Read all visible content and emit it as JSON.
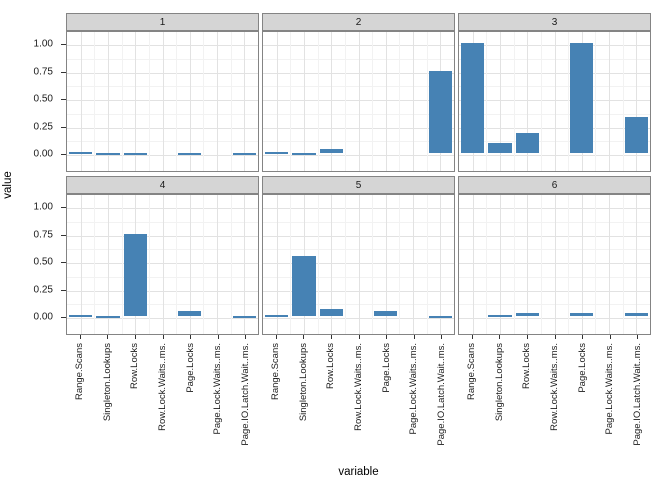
{
  "figure": {
    "xlabel": "variable",
    "ylabel": "value"
  },
  "chart_data": {
    "type": "bar",
    "faceted": true,
    "facet_layout": {
      "rows": 2,
      "cols": 3
    },
    "title": "",
    "xlabel": "variable",
    "ylabel": "value",
    "legend": "none",
    "grid": true,
    "categories": [
      "Range.Scans",
      "Singleton.Lookups",
      "Row.Locks",
      "Row.Lock.Waits..ms.",
      "Page.Locks",
      "Page.Lock.Waits..ms.",
      "Page.IO.Latch.Wait..ms."
    ],
    "series": [
      {
        "name": "1",
        "values": [
          0,
          -0.02,
          -0.02,
          null,
          -0.01,
          null,
          -0.01
        ]
      },
      {
        "name": "2",
        "values": [
          0,
          -0.02,
          0.04,
          null,
          null,
          null,
          0.75
        ]
      },
      {
        "name": "3",
        "values": [
          1.0,
          0.09,
          0.18,
          null,
          1.0,
          null,
          0.33
        ]
      },
      {
        "name": "4",
        "values": [
          0,
          -0.02,
          0.75,
          null,
          0.05,
          null,
          -0.01
        ]
      },
      {
        "name": "5",
        "values": [
          0,
          0.55,
          0.06,
          null,
          0.05,
          null,
          -0.01
        ]
      },
      {
        "name": "6",
        "values": [
          null,
          0,
          0.03,
          null,
          0.03,
          null,
          0.03
        ]
      }
    ],
    "y_ticks": [
      1.0,
      0.75,
      0.5,
      0.25,
      0.0
    ],
    "y_tick_labels": [
      "1.00",
      "0.75",
      "0.50",
      "0.25",
      "0.00"
    ],
    "ylim": [
      -0.16,
      1.12
    ],
    "colors": {
      "bar": "#4682B4",
      "strip_fill": "#D5D5D5",
      "panel_border": "#848484",
      "grid_major": "#E2E2E2",
      "grid_minor": "#F2F2F2",
      "tick": "#333333",
      "text": "#1a1a1a"
    }
  }
}
